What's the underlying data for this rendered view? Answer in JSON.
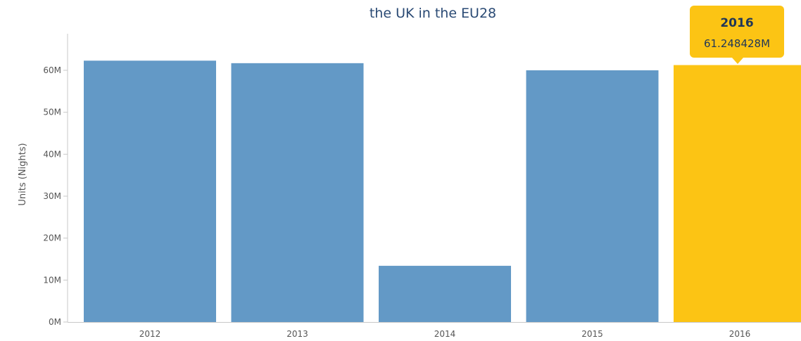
{
  "chart_data": {
    "type": "bar",
    "title": "the UK in the EU28",
    "ylabel": "Units (Nights)",
    "xlabel": "",
    "categories": [
      "2012",
      "2013",
      "2014",
      "2015",
      "2016"
    ],
    "values": [
      62300000,
      61700000,
      13400000,
      60000000,
      61248428
    ],
    "ylim": [
      0,
      70000000
    ],
    "yticks": [
      0,
      10000000,
      20000000,
      30000000,
      40000000,
      50000000,
      60000000
    ],
    "ytick_labels": [
      "0M",
      "10M",
      "20M",
      "30M",
      "40M",
      "50M",
      "60M"
    ],
    "highlighted_index": 4,
    "grid": false,
    "colors": {
      "bar": "#6399c6",
      "highlight": "#fcc414",
      "title": "#2a4a74",
      "axis": "#c8c8c8"
    }
  },
  "tooltip": {
    "year": "2016",
    "value": "61.248428M"
  }
}
